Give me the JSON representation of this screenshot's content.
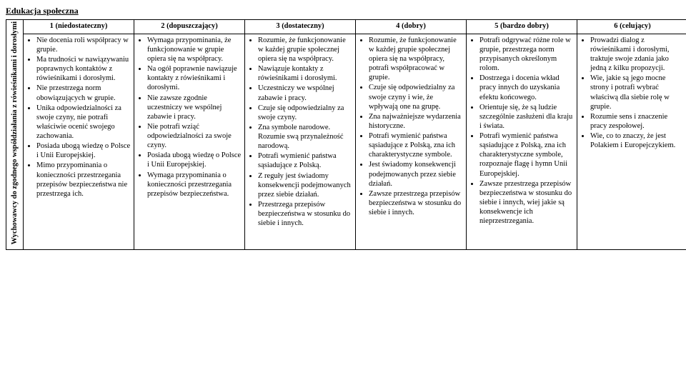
{
  "title": "Edukacja społeczna",
  "side_label": "Wychowawcy do zgodnego współdziałania z rówieśnikami i dorosłymi",
  "headers": [
    "1 (niedostateczny)",
    "2 (dopuszczający)",
    "3 (dostateczny)",
    "4 (dobry)",
    "5 (bardzo dobry)",
    "6 (celujący)"
  ],
  "cols": [
    [
      "Nie docenia roli współpracy w grupie.",
      "Ma trudności w nawiązywaniu poprawnych kontaktów z rówieśnikami i dorosłymi.",
      "Nie przestrzega norm obowiązujących w grupie.",
      "Unika odpowiedzialności za swoje czyny, nie potrafi właściwie ocenić swojego zachowania.",
      "Posiada ubogą wiedzę o Polsce i Unii Europejskiej.",
      "Mimo przypominania o konieczności przestrzegania przepisów bezpieczeństwa nie przestrzega ich."
    ],
    [
      "Wymaga przypominania, że funkcjonowanie w grupie opiera się na współpracy.",
      "Na ogół poprawnie nawiązuje kontakty z rówieśnikami i dorosłymi.",
      "Nie zawsze zgodnie uczestniczy we wspólnej zabawie i pracy.",
      "Nie potrafi wziąć odpowiedzialności za swoje czyny.",
      "Posiada ubogą wiedzę o Polsce i Unii Europejskiej.",
      "Wymaga przypominania o konieczności przestrzegania przepisów bezpieczeństwa."
    ],
    [
      "Rozumie, że funkcjonowanie w każdej grupie społecznej opiera się na współpracy.",
      "Nawiązuje kontakty z rówieśnikami i dorosłymi.",
      "Uczestniczy we wspólnej zabawie i pracy.",
      "Czuje się odpowiedzialny za swoje czyny.",
      "Zna symbole narodowe. Rozumie swą przynależność narodową.",
      "Potrafi wymienić państwa sąsiadujące z Polską.",
      "Z reguły jest świadomy konsekwencji podejmowanych przez siebie działań.",
      "Przestrzega przepisów bezpieczeństwa w stosunku do siebie i innych."
    ],
    [
      "Rozumie, że funkcjonowanie w każdej grupie społecznej opiera się na współpracy, potrafi współpracować w grupie.",
      "Czuje się odpowiedzialny za swoje czyny i wie, że wpływają one na grupę.",
      "Zna najważniejsze wydarzenia historyczne.",
      "Potrafi wymienić państwa sąsiadujące z Polską, zna ich charakterystyczne symbole.",
      "Jest świadomy konsekwencji podejmowanych przez siebie działań.",
      "Zawsze przestrzega przepisów bezpieczeństwa w stosunku do siebie i innych."
    ],
    [
      "Potrafi odgrywać różne role w grupie, przestrzega norm przypisanych określonym rolom.",
      "Dostrzega i docenia wkład pracy innych do uzyskania efektu końcowego.",
      "Orientuje się, że są ludzie szczególnie zasłużeni dla kraju i świata.",
      "Potrafi wymienić państwa sąsiadujące z Polską, zna ich charakterystyczne symbole, rozpoznaje flagę i hymn Unii Europejskiej.",
      "Zawsze przestrzega przepisów bezpieczeństwa w stosunku do siebie i innych, wiej jakie są konsekwencje ich nieprzestrzegania."
    ],
    [
      "Prowadzi dialog z rówieśnikami i dorosłymi, traktuje swoje zdania jako jedną z kilku propozycji.",
      "Wie, jakie są jego mocne strony i potrafi wybrać właściwą dla siebie rolę w grupie.",
      "Rozumie sens i znaczenie pracy zespołowej.",
      "Wie, co to znaczy, że jest Polakiem i Europejczykiem."
    ]
  ]
}
